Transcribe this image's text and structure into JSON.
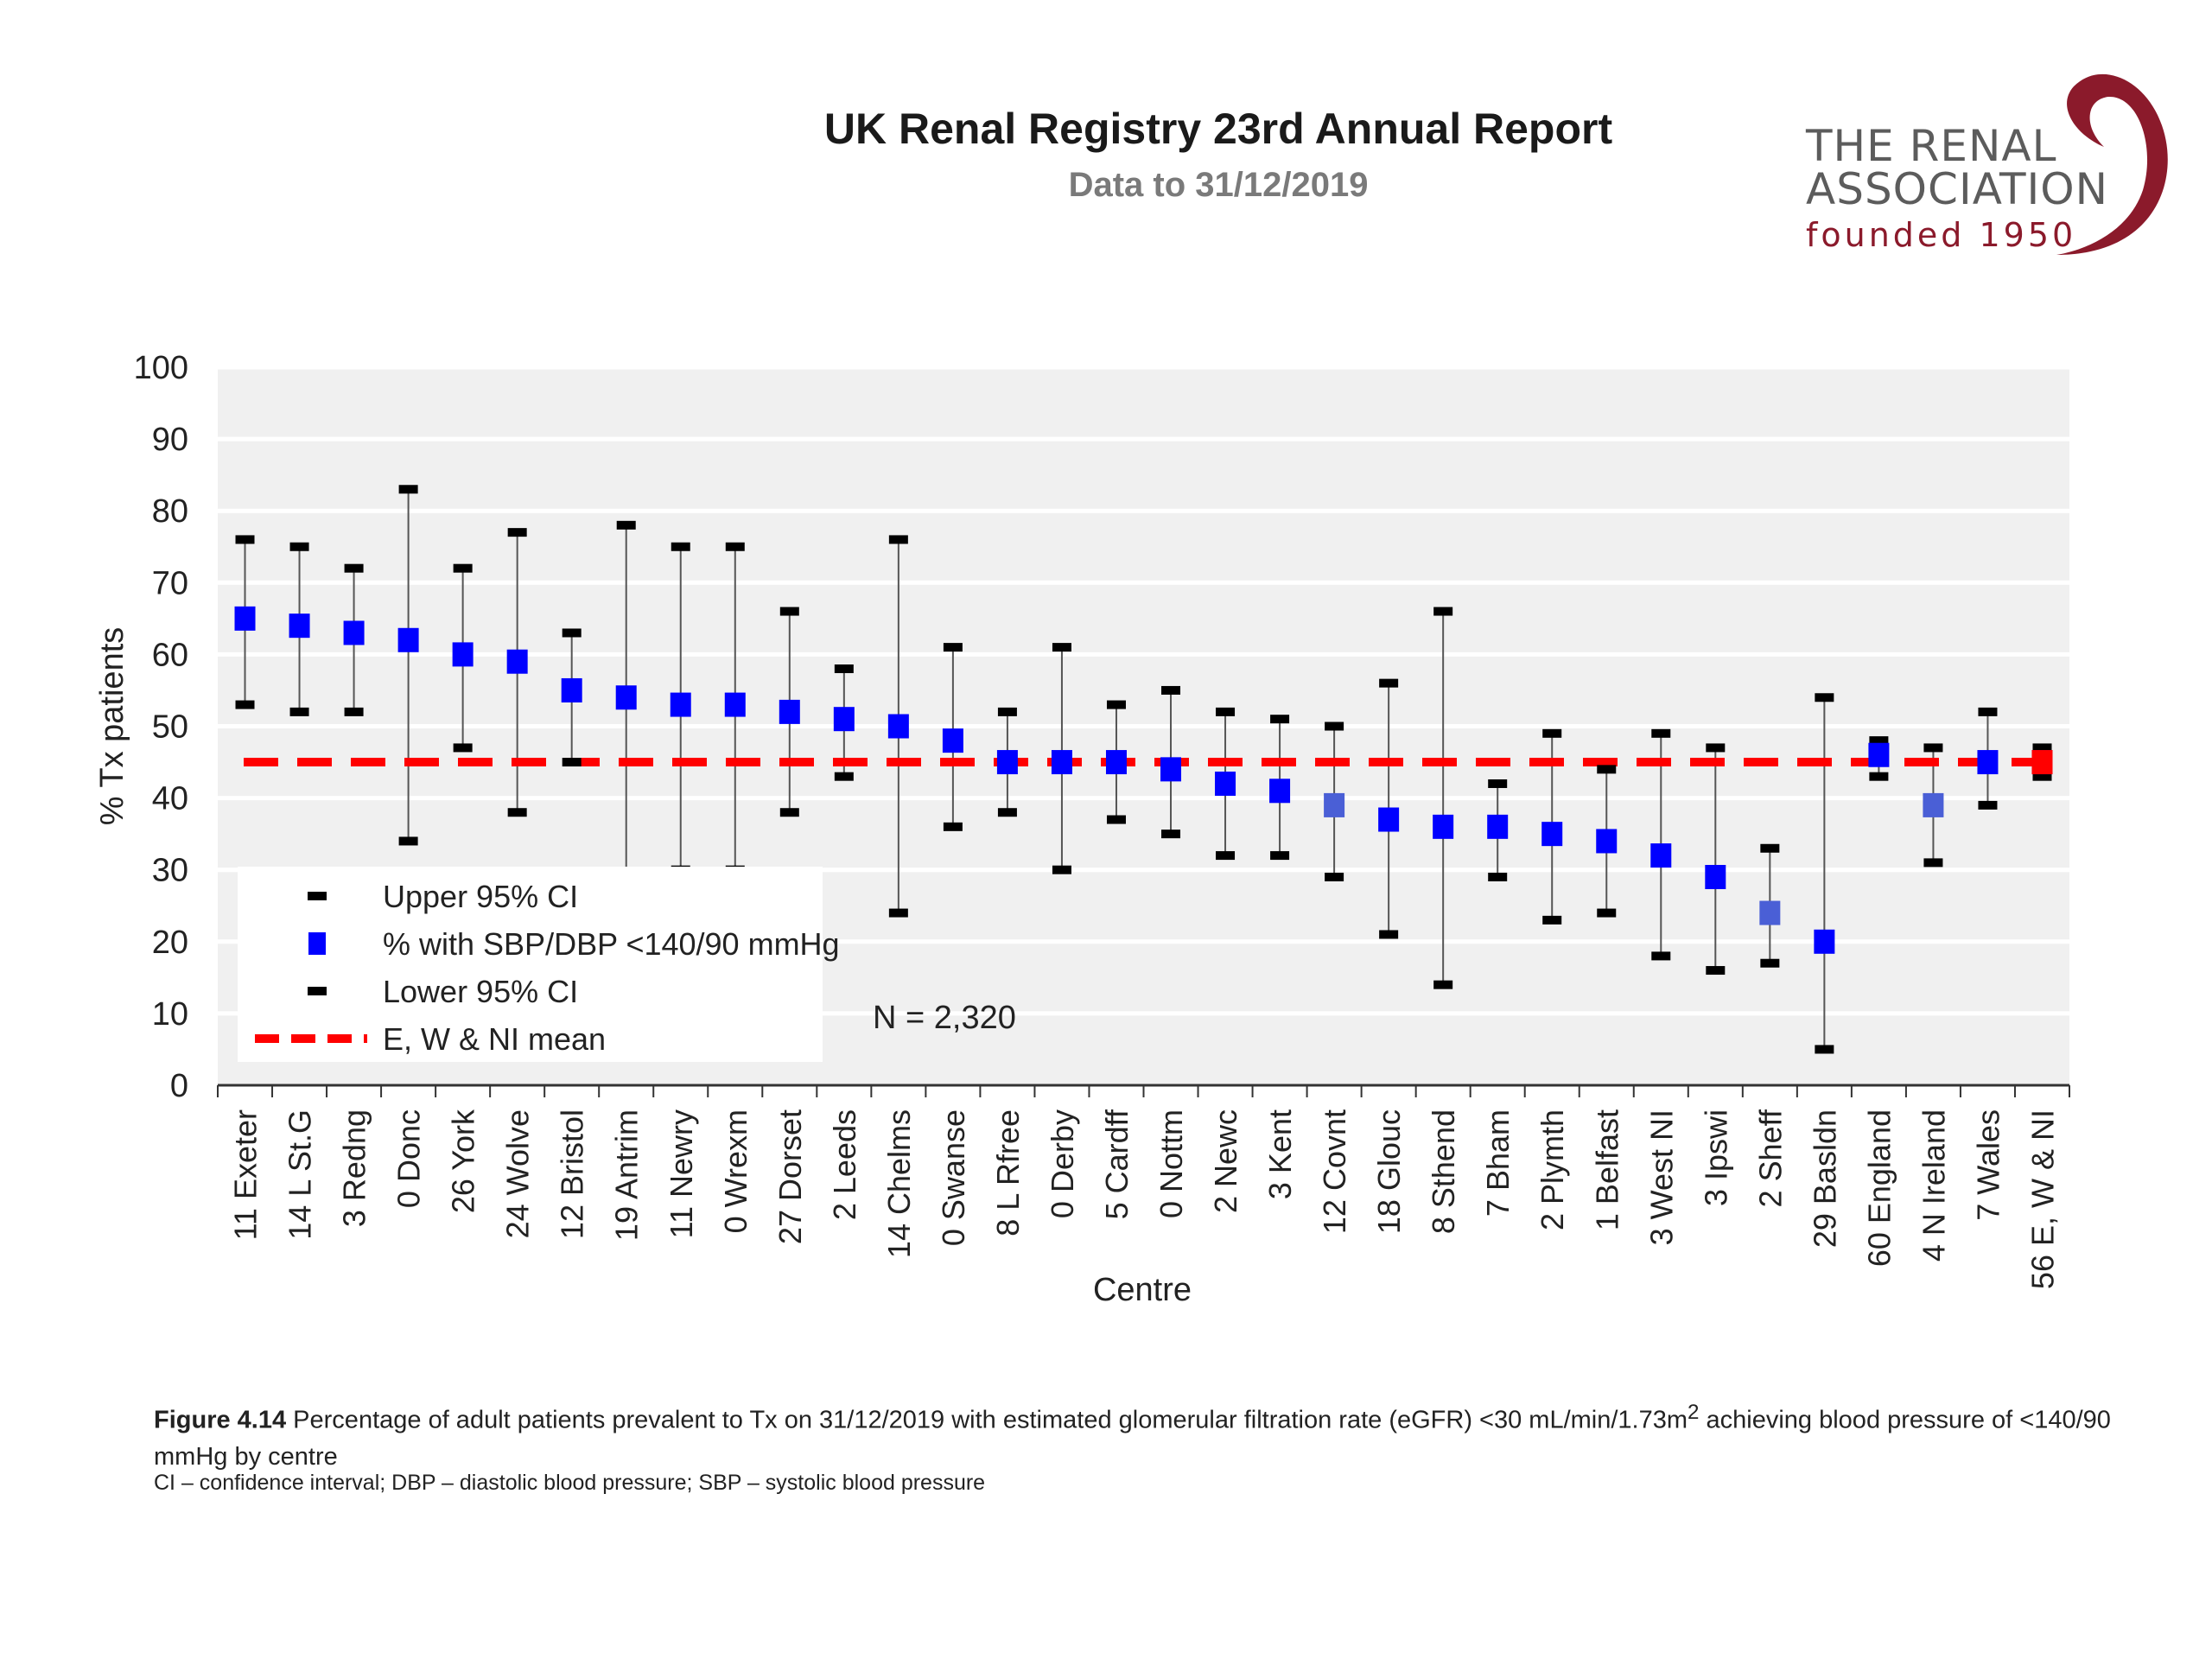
{
  "header": {
    "title": "UK Renal Registry 23rd Annual Report",
    "subtitle": "Data to 31/12/2019",
    "logo": {
      "line1": "THE RENAL",
      "line2": "ASSOCIATION",
      "line3": "founded 1950",
      "color": "#8b1a2b"
    }
  },
  "caption": {
    "figure_label": "Figure 4.14",
    "text_before_sup": " Percentage of adult patients prevalent to Tx on 31/12/2019 with estimated glomerular filtration rate (eGFR) <30 mL/min/1.73m",
    "superscript": "2",
    "text_after_sup": " achieving blood pressure of <140/90 mmHg by centre",
    "note": "CI – confidence interval; DBP – diastolic blood pressure; SBP – systolic blood pressure"
  },
  "chart_data": {
    "type": "scatter",
    "xlabel": "Centre",
    "ylabel": "% Tx patients",
    "ylim": [
      0,
      100
    ],
    "yticks": [
      0,
      10,
      20,
      30,
      40,
      50,
      60,
      70,
      80,
      90,
      100
    ],
    "grid": true,
    "legend_position": "bottom-left",
    "annotation": "N = 2,320",
    "mean_value": 45,
    "legend": [
      {
        "label": "Upper 95% CI",
        "marker": "upper"
      },
      {
        "label": "% with SBP/DBP <140/90 mmHg",
        "marker": "point"
      },
      {
        "label": "Lower 95% CI",
        "marker": "lower"
      },
      {
        "label": "E, W & NI mean",
        "marker": "mean"
      }
    ],
    "colors": {
      "point": "#0000ff",
      "point_alt": "#4a5fd6",
      "ci": "#000000",
      "mean": "#ff0000",
      "plot_bg": "#f0f0f0",
      "grid": "#ffffff"
    },
    "categories": [
      "11 Exeter",
      "14 L St.G",
      "3 Redng",
      "0 Donc",
      "26 York",
      "24 Wolve",
      "12 Bristol",
      "19 Antrim",
      "11 Newry",
      "0 Wrexm",
      "27 Dorset",
      "2 Leeds",
      "14 Chelms",
      "0 Swanse",
      "8 L Rfree",
      "0 Derby",
      "5 Cardff",
      "0 Nottm",
      "2 Newc",
      "3 Kent",
      "12 Covnt",
      "18 Glouc",
      "8 Sthend",
      "7 Bham",
      "2 Plymth",
      "1 Belfast",
      "3 West NI",
      "3 Ipswi",
      "2 Sheff",
      "29 Basldn",
      "60 England",
      "4 N Ireland",
      "7 Wales",
      "56 E, W & NI"
    ],
    "series": [
      {
        "name": "% with SBP/DBP <140/90 mmHg",
        "values": [
          65,
          64,
          63,
          62,
          60,
          59,
          55,
          54,
          53,
          53,
          52,
          51,
          50,
          48,
          45,
          45,
          45,
          44,
          42,
          41,
          39,
          37,
          36,
          36,
          35,
          34,
          32,
          29,
          24,
          20,
          46,
          39,
          45,
          45
        ]
      },
      {
        "name": "Upper 95% CI",
        "values": [
          76,
          75,
          72,
          83,
          72,
          77,
          63,
          78,
          75,
          75,
          66,
          58,
          76,
          61,
          52,
          61,
          53,
          55,
          52,
          51,
          50,
          56,
          66,
          42,
          49,
          44,
          49,
          47,
          33,
          54,
          48,
          47,
          52,
          47
        ]
      },
      {
        "name": "Lower 95% CI",
        "values": [
          53,
          52,
          52,
          34,
          47,
          38,
          45,
          29,
          30,
          30,
          38,
          43,
          24,
          36,
          38,
          30,
          37,
          35,
          32,
          32,
          29,
          21,
          14,
          29,
          23,
          24,
          18,
          16,
          17,
          5,
          43,
          31,
          39,
          43
        ]
      }
    ]
  }
}
